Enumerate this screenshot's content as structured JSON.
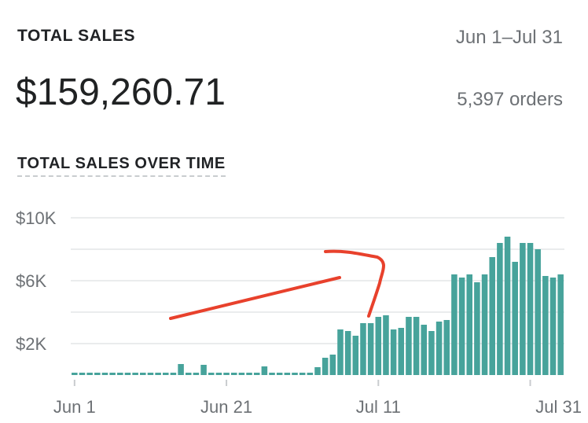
{
  "header": {
    "title": "TOTAL SALES",
    "date_range": "Jun 1–Jul 31",
    "total": "$159,260.71",
    "orders": "5,397 orders"
  },
  "chart_title": "TOTAL SALES OVER TIME",
  "colors": {
    "bar": "#47a39b",
    "grid": "#e4e5e7",
    "annotation": "#e8412c"
  },
  "chart_data": {
    "type": "bar",
    "title": "TOTAL SALES OVER TIME",
    "x_start": "Jun 1",
    "x_end": "Jul 31",
    "x_tick_labels": [
      "Jun 1",
      "Jun 21",
      "Jul 11",
      "Jul 31"
    ],
    "y_tick_labels": [
      "$10K",
      "$6K",
      "$2K"
    ],
    "y_ticks": [
      10000,
      6000,
      2000
    ],
    "ylim": [
      0,
      10000
    ],
    "grid": true,
    "values": [
      150,
      150,
      150,
      150,
      150,
      150,
      150,
      150,
      150,
      150,
      150,
      150,
      150,
      150,
      700,
      150,
      150,
      650,
      150,
      150,
      150,
      150,
      150,
      150,
      150,
      550,
      150,
      150,
      150,
      150,
      150,
      150,
      500,
      1100,
      1300,
      2900,
      2800,
      2500,
      3300,
      3300,
      3700,
      3800,
      2900,
      3000,
      3700,
      3700,
      3200,
      2800,
      3400,
      3500,
      6400,
      6200,
      6400,
      5900,
      6400,
      7500,
      8400,
      8800,
      7200,
      8400,
      8400,
      8000,
      6300,
      6200,
      6400
    ]
  }
}
